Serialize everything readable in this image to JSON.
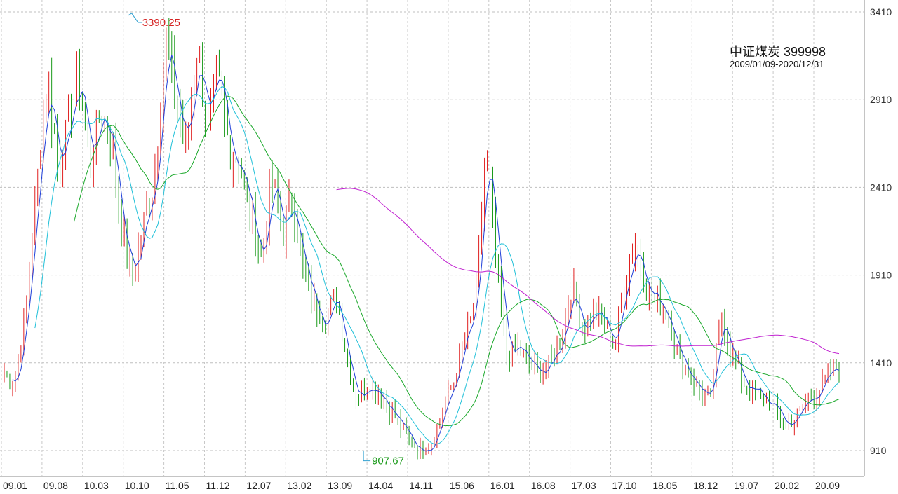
{
  "title": "中证煤炭 399998",
  "subtitle": "2009/01/09-2020/12/31",
  "chart_data": {
    "type": "line",
    "subtype": "candlestick-with-moving-averages",
    "y_ticks": [
      910,
      1410,
      1910,
      2410,
      2910,
      3410
    ],
    "ylim": [
      820,
      3460
    ],
    "x_ticks": [
      "09.01",
      "09.08",
      "10.03",
      "10.10",
      "11.05",
      "11.12",
      "12.07",
      "13.02",
      "13.09",
      "14.04",
      "14.11",
      "15.06",
      "16.01",
      "16.08",
      "17.03",
      "17.10",
      "18.05",
      "18.12",
      "19.07",
      "20.02",
      "20.09"
    ],
    "grid": true,
    "annotations": [
      {
        "label": "3390.25",
        "value": 3390.25,
        "date": "10.10",
        "kind": "max"
      },
      {
        "label": "907.67",
        "value": 907.67,
        "date": "14.04",
        "kind": "min"
      }
    ],
    "colors": {
      "up": "#e02020",
      "down": "#1a9a1a",
      "ma_blue": "#1f3fd8",
      "ma_cyan": "#20c0d8",
      "ma_green": "#1aa82a",
      "ma_magenta": "#c020d0"
    },
    "price_path": [
      1350,
      1300,
      1700,
      2400,
      3050,
      2550,
      2750,
      3050,
      2550,
      2850,
      2700,
      2150,
      1900,
      2200,
      2450,
      3250,
      2900,
      2650,
      3200,
      2800,
      3000,
      2650,
      2550,
      2250,
      2000,
      2450,
      2150,
      2350,
      1900,
      1750,
      1650,
      1800,
      1450,
      1200,
      1300,
      1250,
      1150,
      1050,
      960,
      910,
      960,
      1150,
      1300,
      1550,
      1700,
      2650,
      1950,
      1450,
      1500,
      1400,
      1350,
      1400,
      1550,
      1850,
      1600,
      1700,
      1650,
      1500,
      1900,
      2100,
      1850,
      1750,
      1700,
      1450,
      1350,
      1250,
      1200,
      1700,
      1450,
      1300,
      1250,
      1200,
      1150,
      1050,
      1100,
      1200,
      1250,
      1330,
      1400
    ]
  }
}
